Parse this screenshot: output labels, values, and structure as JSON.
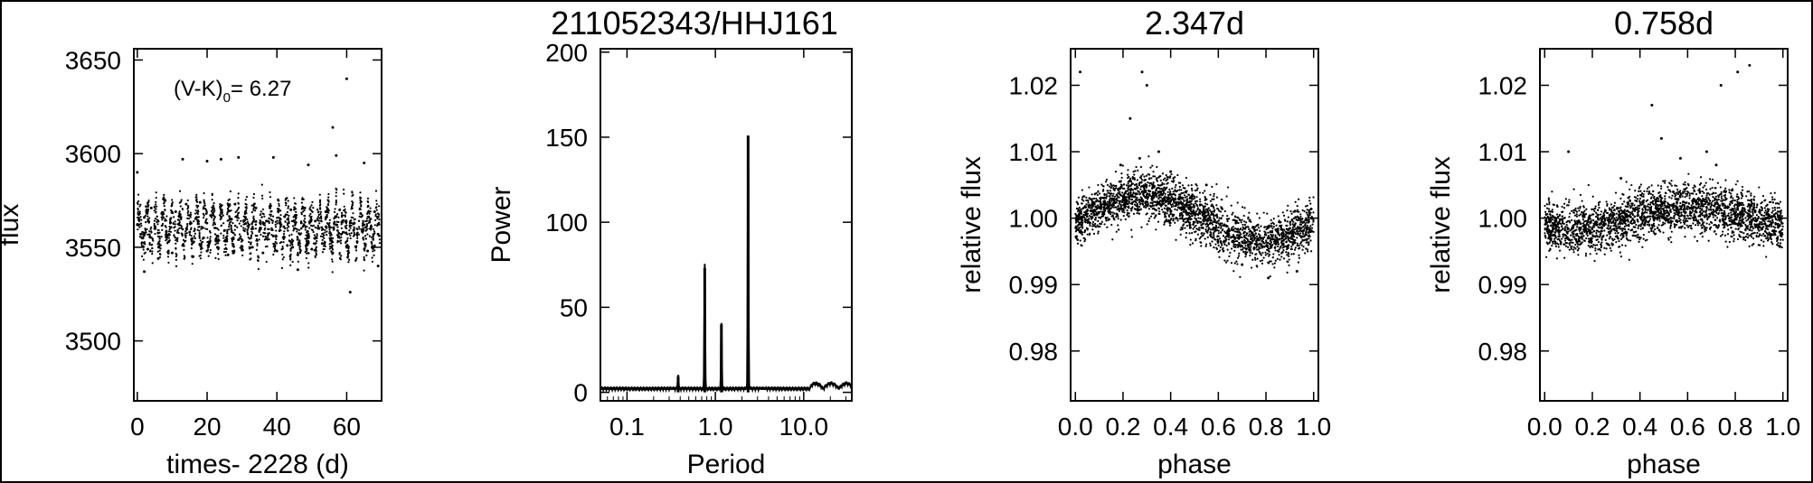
{
  "figure": {
    "figure_title": "211052343/HHJ161"
  },
  "chart_data": [
    {
      "type": "scatter",
      "title": "",
      "xlabel": "times- 2228 (d)",
      "ylabel": "flux",
      "xlim": [
        -1,
        70
      ],
      "ylim": [
        3468,
        3656
      ],
      "xticks": [
        0,
        20,
        40,
        60
      ],
      "xtick_labels": [
        "0",
        "20",
        "40",
        "60"
      ],
      "yticks": [
        3500,
        3550,
        3600,
        3650
      ],
      "ytick_labels": [
        "3500",
        "3550",
        "3600",
        "3650"
      ],
      "annotation": {
        "text": "(V-K)",
        "sub": "0",
        "suffix": "= 6.27"
      },
      "series": [
        {
          "points": [
            [
              0,
              3562
            ],
            [
              1,
              3557
            ],
            [
              2,
              3566
            ],
            [
              3,
              3549
            ],
            [
              4,
              3571
            ],
            [
              5,
              3560
            ],
            [
              6,
              3544
            ],
            [
              7,
              3568
            ],
            [
              8,
              3575
            ],
            [
              9,
              3553
            ],
            [
              10,
              3547
            ],
            [
              11,
              3569
            ],
            [
              12,
              3562
            ],
            [
              13,
              3551
            ],
            [
              14,
              3573
            ],
            [
              15,
              3558
            ],
            [
              16,
              3545
            ],
            [
              17,
              3566
            ],
            [
              18,
              3574
            ],
            [
              19,
              3555
            ],
            [
              20,
              3548
            ],
            [
              21,
              3567
            ],
            [
              22,
              3563
            ],
            [
              23,
              3550
            ],
            [
              24,
              3572
            ],
            [
              25,
              3559
            ],
            [
              26,
              3546
            ],
            [
              27,
              3565
            ],
            [
              28,
              3573
            ],
            [
              29,
              3554
            ],
            [
              30,
              3549
            ],
            [
              31,
              3566
            ],
            [
              32,
              3562
            ],
            [
              33,
              3550
            ],
            [
              34,
              3571
            ],
            [
              35,
              3559
            ],
            [
              36,
              3547
            ],
            [
              37,
              3564
            ],
            [
              38,
              3572
            ],
            [
              39,
              3556
            ],
            [
              40,
              3548
            ],
            [
              41,
              3565
            ],
            [
              42,
              3561
            ],
            [
              43,
              3551
            ],
            [
              44,
              3570
            ],
            [
              45,
              3560
            ],
            [
              46,
              3546
            ],
            [
              47,
              3563
            ],
            [
              48,
              3571
            ],
            [
              49,
              3557
            ],
            [
              50,
              3549
            ],
            [
              51,
              3564
            ],
            [
              52,
              3560
            ],
            [
              53,
              3552
            ],
            [
              54,
              3569
            ],
            [
              55,
              3561
            ],
            [
              56,
              3547
            ],
            [
              57,
              3562
            ],
            [
              58,
              3570
            ],
            [
              59,
              3558
            ],
            [
              60,
              3550
            ],
            [
              61,
              3563
            ],
            [
              62,
              3559
            ],
            [
              63,
              3553
            ],
            [
              64,
              3568
            ],
            [
              65,
              3562
            ],
            [
              66,
              3548
            ],
            [
              67,
              3561
            ],
            [
              68,
              3569
            ],
            [
              69,
              3557
            ],
            [
              13,
              3597
            ],
            [
              20,
              3596
            ],
            [
              24,
              3597
            ],
            [
              29,
              3598
            ],
            [
              39,
              3598
            ],
            [
              49,
              3594
            ],
            [
              57,
              3599
            ],
            [
              65,
              3595
            ],
            [
              61,
              3526
            ],
            [
              56,
              3614
            ],
            [
              60,
              3640
            ],
            [
              0,
              3590
            ],
            [
              2,
              3537
            ],
            [
              46,
              3538
            ],
            [
              69,
              3540
            ]
          ]
        }
      ]
    },
    {
      "type": "line",
      "title": "",
      "xlabel": "Period",
      "ylabel": "Power",
      "xscale": "log",
      "xlim": [
        0.05,
        35
      ],
      "ylim": [
        -5,
        202
      ],
      "xticks": [
        0.1,
        1.0,
        10.0
      ],
      "xtick_labels": [
        "0.1",
        "1.0",
        "10.0"
      ],
      "yticks": [
        0,
        50,
        100,
        150,
        200
      ],
      "ytick_labels": [
        "0",
        "50",
        "100",
        "150",
        "200"
      ],
      "peaks": [
        {
          "period": 0.379,
          "power": 9
        },
        {
          "period": 0.758,
          "power": 73
        },
        {
          "period": 1.17,
          "power": 40
        },
        {
          "period": 2.347,
          "power": 151
        }
      ],
      "baseline_power": 1.5
    },
    {
      "type": "scatter",
      "title": "2.347d",
      "xlabel": "phase",
      "ylabel": "relative flux",
      "xlim": [
        -0.02,
        1.02
      ],
      "ylim": [
        0.9725,
        1.0255
      ],
      "xticks": [
        0.0,
        0.2,
        0.4,
        0.6,
        0.8,
        1.0
      ],
      "xtick_labels": [
        "0.0",
        "0.2",
        "0.4",
        "0.6",
        "0.8",
        "1.0"
      ],
      "yticks": [
        0.98,
        0.99,
        1.0,
        1.01,
        1.02
      ],
      "ytick_labels": [
        "0.98",
        "0.99",
        "1.00",
        "1.01",
        "1.02"
      ],
      "trend": {
        "mean": 1.0,
        "amplitude": 0.0034,
        "phase_of_max": 0.28,
        "scatter": 0.0018
      },
      "outliers": [
        [
          0.02,
          1.022
        ],
        [
          0.23,
          1.015
        ],
        [
          0.28,
          1.022
        ],
        [
          0.3,
          1.02
        ],
        [
          0.27,
          1.009
        ],
        [
          0.35,
          1.01
        ],
        [
          0.19,
          1.008
        ],
        [
          0.55,
          1.005
        ],
        [
          0.81,
          0.991
        ],
        [
          0.7,
          0.993
        ],
        [
          0.93,
          0.992
        ],
        [
          0.4,
          1.007
        ]
      ]
    },
    {
      "type": "scatter",
      "title": "0.758d",
      "xlabel": "phase",
      "ylabel": "relative flux",
      "xlim": [
        -0.02,
        1.02
      ],
      "ylim": [
        0.9725,
        1.0255
      ],
      "xticks": [
        0.0,
        0.2,
        0.4,
        0.6,
        0.8,
        1.0
      ],
      "xtick_labels": [
        "0.0",
        "0.2",
        "0.4",
        "0.6",
        "0.8",
        "1.0"
      ],
      "yticks": [
        0.98,
        0.99,
        1.0,
        1.01,
        1.02
      ],
      "ytick_labels": [
        "0.98",
        "0.99",
        "1.00",
        "1.01",
        "1.02"
      ],
      "trend": {
        "mean": 1.0,
        "amplitude": 0.0016,
        "phase_of_max": 0.62,
        "scatter": 0.0018
      },
      "outliers": [
        [
          0.74,
          1.02
        ],
        [
          0.81,
          1.022
        ],
        [
          0.86,
          1.023
        ],
        [
          0.45,
          1.017
        ],
        [
          0.1,
          1.01
        ],
        [
          0.57,
          1.009
        ],
        [
          0.68,
          1.01
        ],
        [
          0.72,
          1.008
        ],
        [
          0.32,
          1.006
        ],
        [
          0.49,
          1.012
        ]
      ]
    }
  ]
}
